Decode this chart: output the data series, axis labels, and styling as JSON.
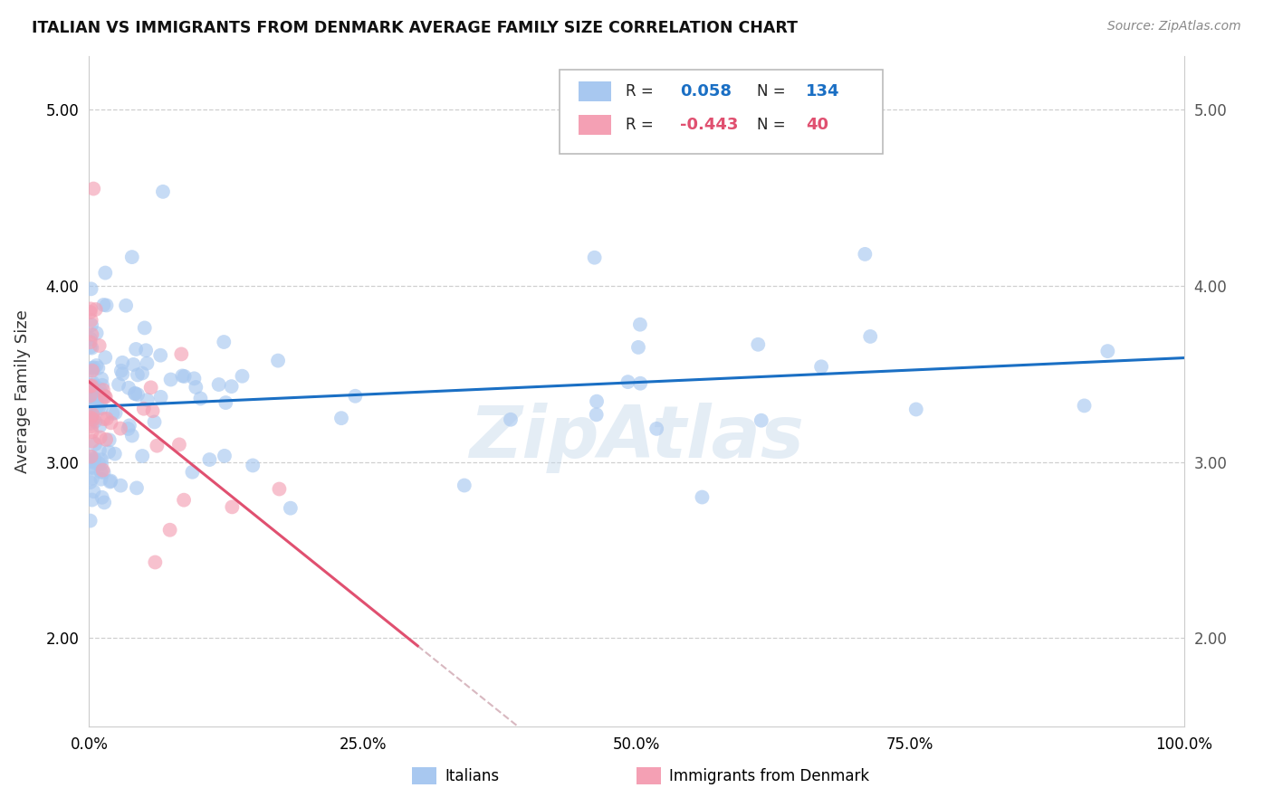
{
  "title": "ITALIAN VS IMMIGRANTS FROM DENMARK AVERAGE FAMILY SIZE CORRELATION CHART",
  "source": "Source: ZipAtlas.com",
  "ylabel": "Average Family Size",
  "watermark": "ZipAtlas",
  "legend_labels": [
    "Italians",
    "Immigrants from Denmark"
  ],
  "r_italian": 0.058,
  "n_italian": 134,
  "r_denmark": -0.443,
  "n_denmark": 40,
  "xlim": [
    0,
    1
  ],
  "ylim": [
    1.5,
    5.3
  ],
  "yticks": [
    2.0,
    3.0,
    4.0,
    5.0
  ],
  "xticks": [
    0.0,
    0.25,
    0.5,
    0.75,
    1.0
  ],
  "xtick_labels": [
    "0.0%",
    "25.0%",
    "50.0%",
    "75.0%",
    "100.0%"
  ],
  "color_italian": "#a8c8f0",
  "color_denmark": "#f4a0b4",
  "line_color_italian": "#1a6fc4",
  "line_color_denmark": "#e05070",
  "line_color_extrap": "#d8b8c0",
  "background_color": "#ffffff",
  "grid_color": "#bbbbbb"
}
